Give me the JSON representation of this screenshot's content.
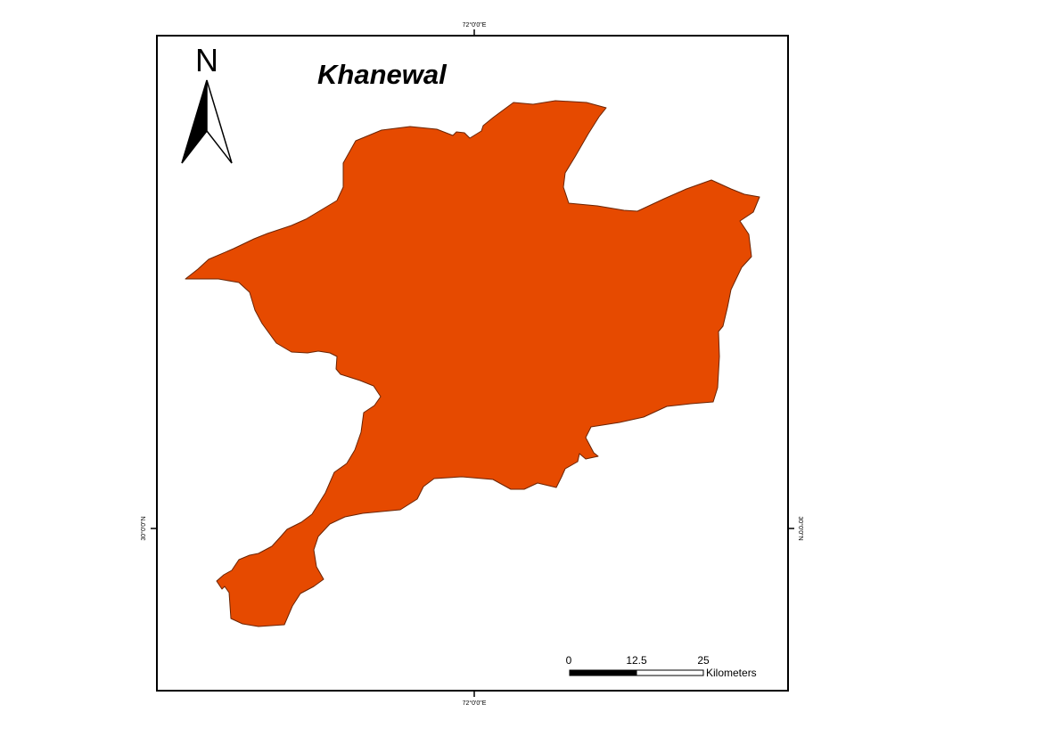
{
  "map": {
    "title": "Khanewal",
    "north_arrow": {
      "label": "N"
    },
    "district_fill_color": "#e64a00",
    "district_stroke_color": "#6b2400",
    "frame_color": "#000000",
    "graticule": {
      "longitude_label": "72°0'0\"E",
      "latitude_label": "30°0'0\"N"
    },
    "scale_bar": {
      "labels": [
        "0",
        "12.5",
        "25"
      ],
      "unit": "Kilometers"
    }
  }
}
